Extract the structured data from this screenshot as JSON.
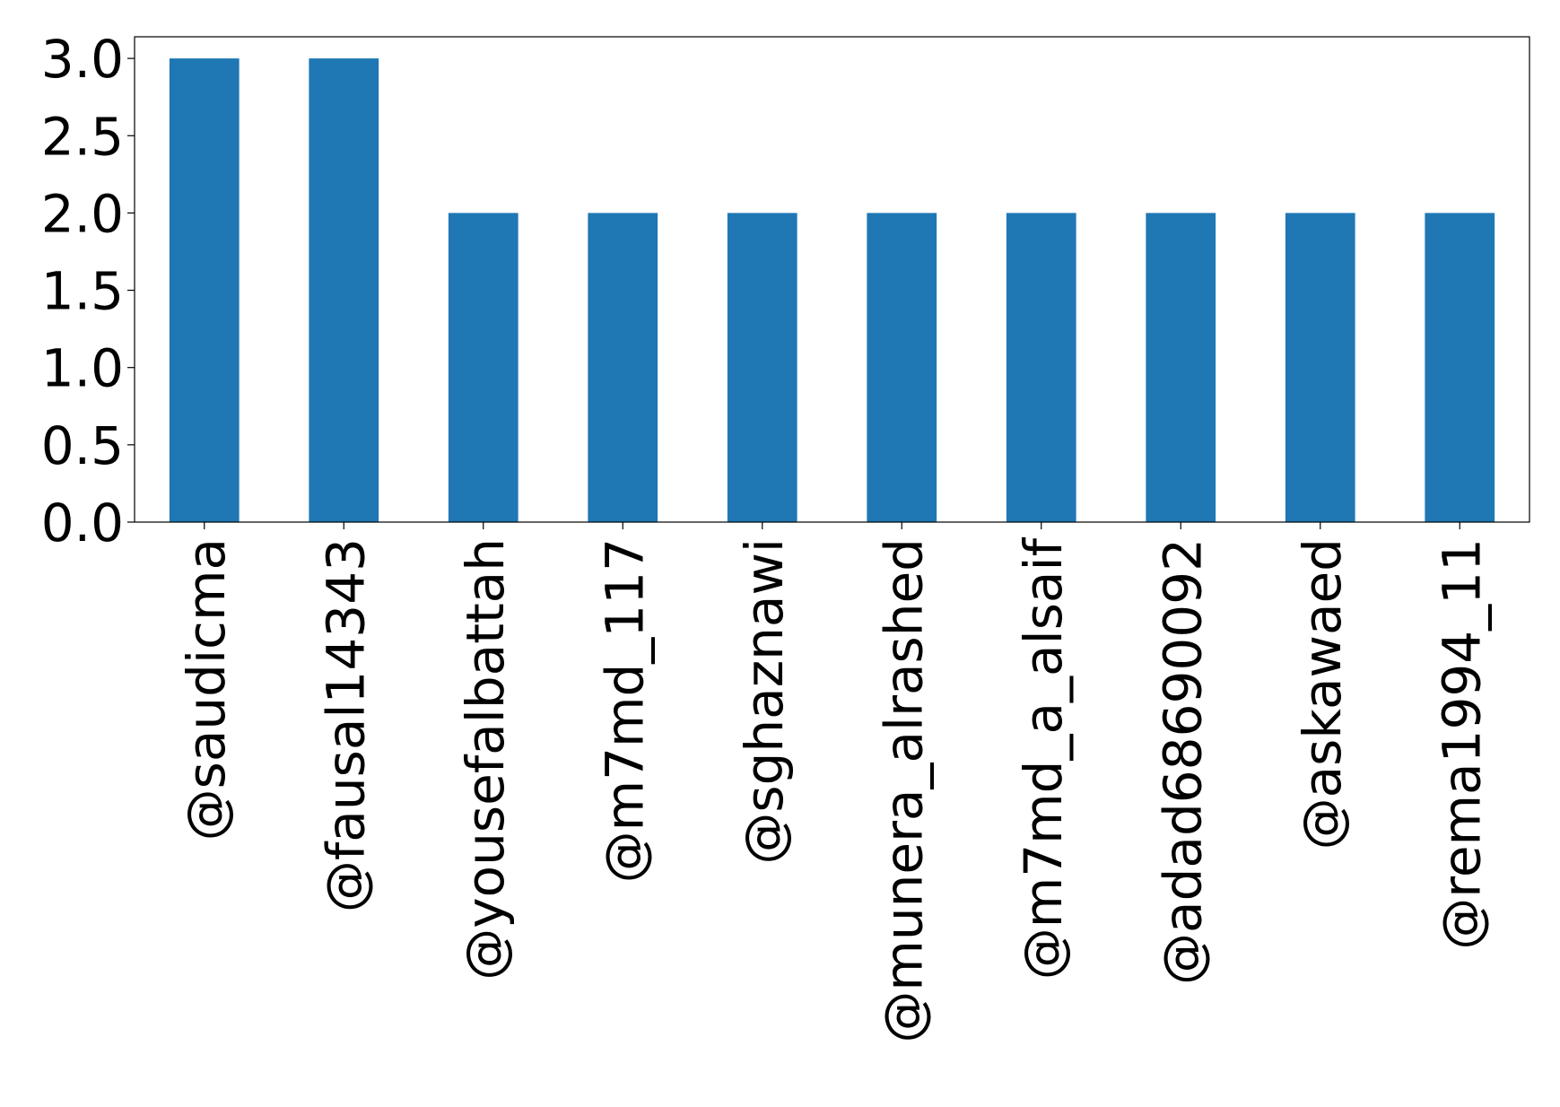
{
  "chart_data": {
    "type": "bar",
    "title": "",
    "xlabel": "",
    "ylabel": "",
    "categories": [
      "@saudicma",
      "@fausal14343",
      "@yousefalbattah",
      "@m7md_117",
      "@sghaznawi",
      "@munera_alrashed",
      "@m7md_a_alsaif",
      "@adad68690092",
      "@askawaed",
      "@rema1994_11"
    ],
    "values": [
      3,
      3,
      2,
      2,
      2,
      2,
      2,
      2,
      2,
      2
    ],
    "ylim": [
      0,
      3.14
    ],
    "yticks": [
      0.0,
      0.5,
      1.0,
      1.5,
      2.0,
      2.5,
      3.0
    ],
    "ytick_labels": [
      "0.0",
      "0.5",
      "1.0",
      "1.5",
      "2.0",
      "2.5",
      "3.0"
    ],
    "grid": false,
    "legend": "none",
    "bar_color": "#1f77b4"
  }
}
